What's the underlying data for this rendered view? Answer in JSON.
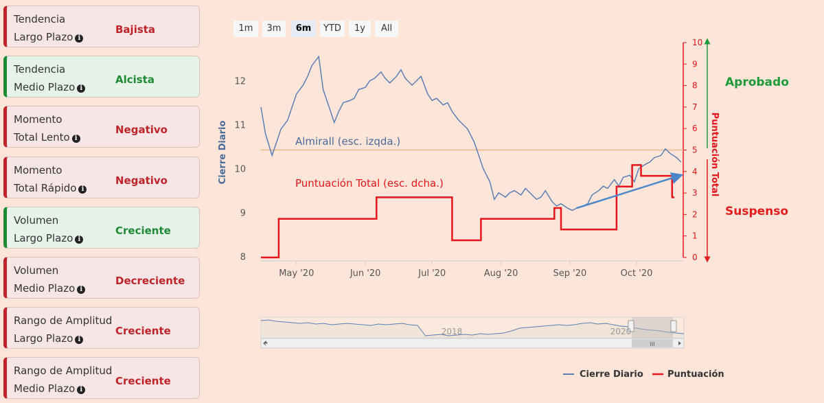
{
  "cards": [
    {
      "line1": "Tendencia",
      "line2": "Largo Plazo",
      "status": "Bajista",
      "tone": "red"
    },
    {
      "line1": "Tendencia",
      "line2": "Medio Plazo",
      "status": "Alcista",
      "tone": "green"
    },
    {
      "line1": "Momento",
      "line2": "Total Lento",
      "status": "Negativo",
      "tone": "red"
    },
    {
      "line1": "Momento",
      "line2": "Total Rápido",
      "status": "Negativo",
      "tone": "red"
    },
    {
      "line1": "Volumen",
      "line2": "Largo Plazo",
      "status": "Creciente",
      "tone": "green"
    },
    {
      "line1": "Volumen",
      "line2": "Medio Plazo",
      "status": "Decreciente",
      "tone": "red"
    },
    {
      "line1": "Rango de Amplitud",
      "line2": "Largo Plazo",
      "status": "Creciente",
      "tone": "red"
    },
    {
      "line1": "Rango de Amplitud",
      "line2": "Medio Plazo",
      "status": "Creciente",
      "tone": "red"
    }
  ],
  "range_buttons": [
    "1m",
    "3m",
    "6m",
    "YTD",
    "1y",
    "All"
  ],
  "range_selected": "6m",
  "labels": {
    "approved": "Aprobado",
    "failed": "Suspenso",
    "series_left_note": "Almirall (esc. izqda.)",
    "series_right_note": "Puntuación Total (esc. dcha.)"
  },
  "navigator": {
    "years": [
      "2018",
      "2020"
    ],
    "scroll_grip": "III"
  },
  "colors": {
    "price": "#5b7fb4",
    "score": "#e8141c",
    "threshold": "#f0b886",
    "green": "#1f9a3a",
    "red": "#e41c1c"
  },
  "chart_data": {
    "type": "line",
    "title": "",
    "xlabel": "",
    "ylabel": "Cierre Diario",
    "y2label": "Puntuación Total",
    "x_range": [
      "2020-04-15",
      "2020-10-22"
    ],
    "x_ticks": [
      {
        "date": "2020-05-01",
        "label": "May '20"
      },
      {
        "date": "2020-06-01",
        "label": "Jun '20"
      },
      {
        "date": "2020-07-01",
        "label": "Jul '20"
      },
      {
        "date": "2020-08-01",
        "label": "Aug '20"
      },
      {
        "date": "2020-09-01",
        "label": "Sep '20"
      },
      {
        "date": "2020-10-01",
        "label": "Oct '20"
      }
    ],
    "ylim": [
      7.9,
      12.9
    ],
    "y_ticks": [
      8,
      9,
      10,
      11,
      12
    ],
    "y2lim": [
      0,
      10
    ],
    "y2_ticks": [
      0,
      1,
      2,
      3,
      4,
      5,
      6,
      7,
      8,
      9,
      10
    ],
    "threshold_y2": 5,
    "legend": [
      "Cierre Diario",
      "Puntuación"
    ],
    "series": [
      {
        "name": "Cierre Diario",
        "axis": "left",
        "x": [
          "2020-04-15",
          "2020-04-17",
          "2020-04-20",
          "2020-04-22",
          "2020-04-24",
          "2020-04-27",
          "2020-04-29",
          "2020-05-01",
          "2020-05-04",
          "2020-05-06",
          "2020-05-08",
          "2020-05-11",
          "2020-05-13",
          "2020-05-15",
          "2020-05-18",
          "2020-05-20",
          "2020-05-22",
          "2020-05-25",
          "2020-05-27",
          "2020-05-29",
          "2020-06-01",
          "2020-06-03",
          "2020-06-05",
          "2020-06-08",
          "2020-06-10",
          "2020-06-12",
          "2020-06-15",
          "2020-06-17",
          "2020-06-19",
          "2020-06-22",
          "2020-06-24",
          "2020-06-26",
          "2020-06-29",
          "2020-07-01",
          "2020-07-03",
          "2020-07-06",
          "2020-07-08",
          "2020-07-10",
          "2020-07-13",
          "2020-07-15",
          "2020-07-17",
          "2020-07-20",
          "2020-07-22",
          "2020-07-24",
          "2020-07-27",
          "2020-07-29",
          "2020-07-31",
          "2020-08-03",
          "2020-08-05",
          "2020-08-07",
          "2020-08-10",
          "2020-08-12",
          "2020-08-14",
          "2020-08-17",
          "2020-08-19",
          "2020-08-21",
          "2020-08-24",
          "2020-08-26",
          "2020-08-28",
          "2020-08-31",
          "2020-09-02",
          "2020-09-04",
          "2020-09-07",
          "2020-09-09",
          "2020-09-11",
          "2020-09-14",
          "2020-09-16",
          "2020-09-18",
          "2020-09-21",
          "2020-09-23",
          "2020-09-25",
          "2020-09-28",
          "2020-09-30",
          "2020-10-02",
          "2020-10-05",
          "2020-10-07",
          "2020-10-09",
          "2020-10-12",
          "2020-10-14",
          "2020-10-16",
          "2020-10-19",
          "2020-10-21"
        ],
        "values": [
          11.4,
          10.8,
          10.3,
          10.6,
          10.9,
          11.1,
          11.4,
          11.7,
          11.9,
          12.1,
          12.35,
          12.55,
          11.8,
          11.5,
          11.05,
          11.3,
          11.5,
          11.55,
          11.6,
          11.8,
          11.85,
          12.0,
          12.05,
          12.2,
          12.05,
          11.95,
          12.1,
          12.25,
          12.05,
          11.9,
          12.0,
          12.1,
          11.7,
          11.55,
          11.6,
          11.45,
          11.5,
          11.3,
          11.1,
          11.0,
          10.9,
          10.6,
          10.3,
          10.0,
          9.7,
          9.3,
          9.45,
          9.35,
          9.45,
          9.5,
          9.4,
          9.55,
          9.45,
          9.3,
          9.35,
          9.5,
          9.25,
          9.15,
          9.2,
          9.1,
          9.05,
          9.1,
          9.15,
          9.2,
          9.4,
          9.5,
          9.6,
          9.55,
          9.75,
          9.6,
          9.8,
          9.85,
          9.7,
          10.0,
          10.1,
          10.15,
          10.25,
          10.3,
          10.45,
          10.35,
          10.25,
          10.15
        ]
      },
      {
        "name": "Puntuación",
        "axis": "right",
        "step": true,
        "x": [
          "2020-04-15",
          "2020-04-23",
          "2020-06-06",
          "2020-07-10",
          "2020-07-23",
          "2020-08-25",
          "2020-08-28",
          "2020-09-22",
          "2020-09-29",
          "2020-10-03",
          "2020-10-14",
          "2020-10-17",
          "2020-10-18"
        ],
        "values": [
          0,
          1.8,
          2.8,
          0.8,
          1.8,
          2.3,
          1.3,
          3.3,
          4.3,
          3.8,
          3.8,
          2.8,
          2.8
        ]
      }
    ],
    "annotations": [
      {
        "type": "arrow",
        "from": {
          "x": "2020-09-04",
          "y": 9.1
        },
        "to": {
          "x": "2020-10-21",
          "y": 9.85
        }
      }
    ]
  }
}
